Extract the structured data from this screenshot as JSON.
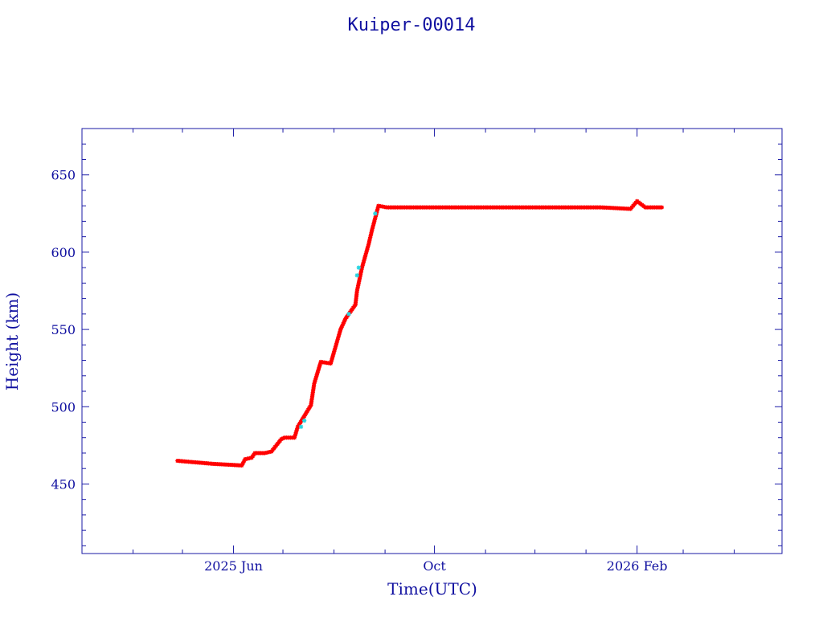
{
  "colors": {
    "axis": "#1a1aa6",
    "text": "#1010a0",
    "series_main": "#ff0000",
    "series_alt": "#2ad4e0",
    "background": "#ffffff"
  },
  "chart_data": {
    "type": "scatter",
    "title": "Kuiper-00014",
    "xlabel": "Time(UTC)",
    "ylabel": "Height (km)",
    "x_type": "date",
    "xlim": [
      "2025-03-01",
      "2026-04-30"
    ],
    "ylim": [
      405,
      680
    ],
    "x_ticks": [
      {
        "date": "2025-06-01",
        "label": "2025 Jun"
      },
      {
        "date": "2025-10-01",
        "label": "Oct"
      },
      {
        "date": "2026-02-01",
        "label": "2026 Feb"
      }
    ],
    "x_minor_ticks": [
      "2025-04-01",
      "2025-05-01",
      "2025-07-01",
      "2025-08-01",
      "2025-09-01",
      "2025-11-01",
      "2025-12-01",
      "2026-01-01",
      "2026-03-01",
      "2026-04-01"
    ],
    "y_ticks": [
      450,
      500,
      550,
      600,
      650
    ],
    "y_minor_step": 10,
    "grid": false,
    "legend": "none",
    "marker": "asterisk",
    "series": [
      {
        "color": "#ff0000",
        "x": [
          "2025-04-28",
          "2025-05-20",
          "2025-06-06",
          "2025-06-08",
          "2025-06-12",
          "2025-06-14",
          "2025-06-20",
          "2025-06-24",
          "2025-06-30",
          "2025-07-02",
          "2025-07-08",
          "2025-07-10",
          "2025-07-18",
          "2025-07-20",
          "2025-07-24",
          "2025-07-30",
          "2025-08-05",
          "2025-08-08",
          "2025-08-14",
          "2025-08-15",
          "2025-08-18",
          "2025-08-22",
          "2025-08-24",
          "2025-08-28",
          "2025-09-02",
          "2025-09-15",
          "2025-10-08",
          "2025-11-15",
          "2025-12-15",
          "2026-01-10",
          "2026-01-28",
          "2026-02-01",
          "2026-02-06",
          "2026-02-16"
        ],
        "y": [
          465,
          463,
          462,
          466,
          467,
          470,
          470,
          471,
          479,
          480,
          480,
          487,
          501,
          515,
          529,
          528,
          550,
          557,
          566,
          575,
          590,
          605,
          614,
          630,
          629,
          629,
          629,
          629,
          629,
          629,
          628,
          633,
          629,
          629
        ]
      },
      {
        "color": "#2ad4e0",
        "x": [
          "2025-07-12",
          "2025-07-14",
          "2025-08-10",
          "2025-08-15",
          "2025-08-16",
          "2025-08-26"
        ],
        "y": [
          487,
          491,
          560,
          585,
          590,
          625
        ]
      }
    ]
  }
}
